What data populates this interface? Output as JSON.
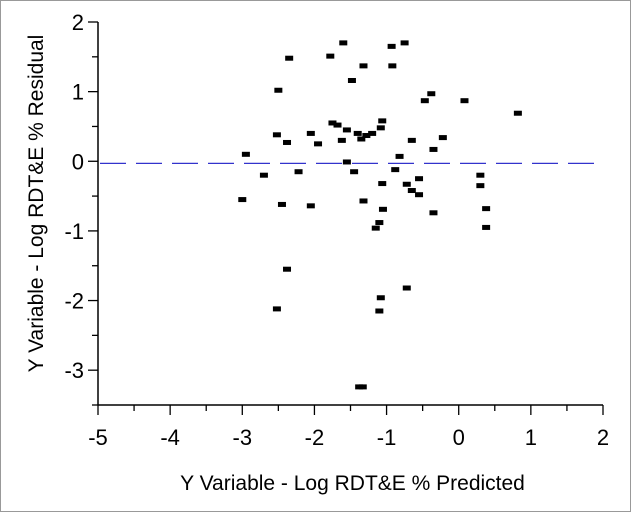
{
  "chart_data": {
    "type": "scatter",
    "title": "",
    "xlabel": "Y Variable - Log RDT&E % Predicted",
    "ylabel": "Y Variable - Log RDT&E % Residual",
    "xlim": [
      -5,
      2
    ],
    "ylim": [
      -3.5,
      2
    ],
    "xticks": [
      "-5",
      "-4",
      "-3",
      "-2",
      "-1",
      "0",
      "1",
      "2"
    ],
    "yticks": [
      "2",
      "1",
      "0",
      "-1",
      "-2",
      "-3"
    ],
    "xtick_values": [
      -5,
      -4,
      -3,
      -2,
      -1,
      0,
      1,
      2
    ],
    "ytick_values": [
      2,
      1,
      0,
      -1,
      -2,
      -3
    ],
    "reference_line": {
      "y": -0.03,
      "style": "dashed",
      "color": "#3333cc"
    },
    "grid": false,
    "marker_color": "#000000",
    "points": [
      {
        "x": -2.95,
        "y": 0.1
      },
      {
        "x": -3.0,
        "y": -0.55
      },
      {
        "x": -2.7,
        "y": -0.2
      },
      {
        "x": -2.5,
        "y": 1.02
      },
      {
        "x": -2.52,
        "y": 0.38
      },
      {
        "x": -2.52,
        "y": -2.12
      },
      {
        "x": -2.45,
        "y": -0.62
      },
      {
        "x": -2.35,
        "y": 1.48
      },
      {
        "x": -2.38,
        "y": 0.27
      },
      {
        "x": -2.38,
        "y": -1.55
      },
      {
        "x": -2.22,
        "y": -0.15
      },
      {
        "x": -2.05,
        "y": 0.4
      },
      {
        "x": -2.05,
        "y": -0.64
      },
      {
        "x": -1.95,
        "y": 0.25
      },
      {
        "x": -1.78,
        "y": 1.51
      },
      {
        "x": -1.75,
        "y": 0.55
      },
      {
        "x": -1.68,
        "y": 0.52
      },
      {
        "x": -1.62,
        "y": 0.3
      },
      {
        "x": -1.6,
        "y": 1.7
      },
      {
        "x": -1.55,
        "y": 0.45
      },
      {
        "x": -1.55,
        "y": -0.01
      },
      {
        "x": -1.48,
        "y": 1.16
      },
      {
        "x": -1.45,
        "y": -0.15
      },
      {
        "x": -1.4,
        "y": 0.4
      },
      {
        "x": -1.35,
        "y": 0.32
      },
      {
        "x": -1.32,
        "y": 1.37
      },
      {
        "x": -1.32,
        "y": -0.57
      },
      {
        "x": -1.28,
        "y": 0.37
      },
      {
        "x": -1.38,
        "y": -3.24
      },
      {
        "x": -1.33,
        "y": -3.24
      },
      {
        "x": -1.2,
        "y": 0.4
      },
      {
        "x": -1.15,
        "y": -0.96
      },
      {
        "x": -1.1,
        "y": -0.88
      },
      {
        "x": -1.08,
        "y": 0.48
      },
      {
        "x": -1.06,
        "y": 0.58
      },
      {
        "x": -1.06,
        "y": -0.32
      },
      {
        "x": -1.05,
        "y": -0.69
      },
      {
        "x": -1.1,
        "y": -2.15
      },
      {
        "x": -1.08,
        "y": -1.96
      },
      {
        "x": -0.93,
        "y": 1.65
      },
      {
        "x": -0.92,
        "y": 1.37
      },
      {
        "x": -0.88,
        "y": -0.12
      },
      {
        "x": -0.82,
        "y": 0.07
      },
      {
        "x": -0.75,
        "y": 1.7
      },
      {
        "x": -0.72,
        "y": -0.33
      },
      {
        "x": -0.72,
        "y": -1.82
      },
      {
        "x": -0.65,
        "y": 0.3
      },
      {
        "x": -0.65,
        "y": -0.42
      },
      {
        "x": -0.55,
        "y": -0.25
      },
      {
        "x": -0.55,
        "y": -0.48
      },
      {
        "x": -0.47,
        "y": 0.87
      },
      {
        "x": -0.38,
        "y": 0.97
      },
      {
        "x": -0.35,
        "y": 0.17
      },
      {
        "x": -0.35,
        "y": -0.74
      },
      {
        "x": -0.22,
        "y": 0.34
      },
      {
        "x": 0.08,
        "y": 0.87
      },
      {
        "x": 0.3,
        "y": -0.2
      },
      {
        "x": 0.3,
        "y": -0.35
      },
      {
        "x": 0.38,
        "y": -0.68
      },
      {
        "x": 0.38,
        "y": -0.95
      },
      {
        "x": 0.82,
        "y": 0.69
      }
    ]
  }
}
